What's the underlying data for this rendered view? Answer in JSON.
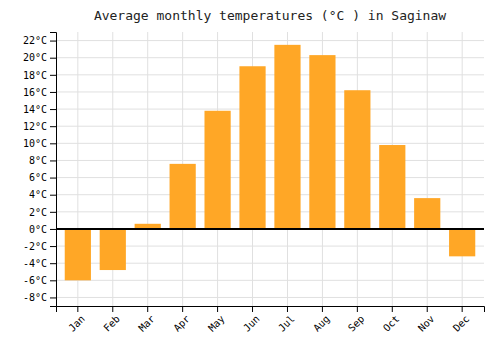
{
  "chart_data": {
    "type": "bar",
    "title": "Average monthly temperatures (°C ) in Saginaw",
    "categories": [
      "Jan",
      "Feb",
      "Mar",
      "Apr",
      "May",
      "Jun",
      "Jul",
      "Aug",
      "Sep",
      "Oct",
      "Nov",
      "Dec"
    ],
    "values": [
      -6.0,
      -4.8,
      0.6,
      7.6,
      13.8,
      19.0,
      21.5,
      20.3,
      16.2,
      9.8,
      3.6,
      -3.2
    ],
    "color": "#FFA726",
    "ylim": [
      -9,
      23
    ],
    "yticks": [
      {
        "value": -8,
        "label": "-8°C"
      },
      {
        "value": -6,
        "label": "-6°C"
      },
      {
        "value": -4,
        "label": "-4°C"
      },
      {
        "value": -2,
        "label": "-2°C"
      },
      {
        "value": 0,
        "label": "0°C"
      },
      {
        "value": 2,
        "label": "2°C"
      },
      {
        "value": 4,
        "label": "4°C"
      },
      {
        "value": 6,
        "label": "6°C"
      },
      {
        "value": 8,
        "label": "8°C"
      },
      {
        "value": 10,
        "label": "10°C"
      },
      {
        "value": 12,
        "label": "12°C"
      },
      {
        "value": 14,
        "label": "14°C"
      },
      {
        "value": 16,
        "label": "16°C"
      },
      {
        "value": 18,
        "label": "18°C"
      },
      {
        "value": 20,
        "label": "20°C"
      },
      {
        "value": 22,
        "label": "22°C"
      }
    ],
    "grid": true
  }
}
